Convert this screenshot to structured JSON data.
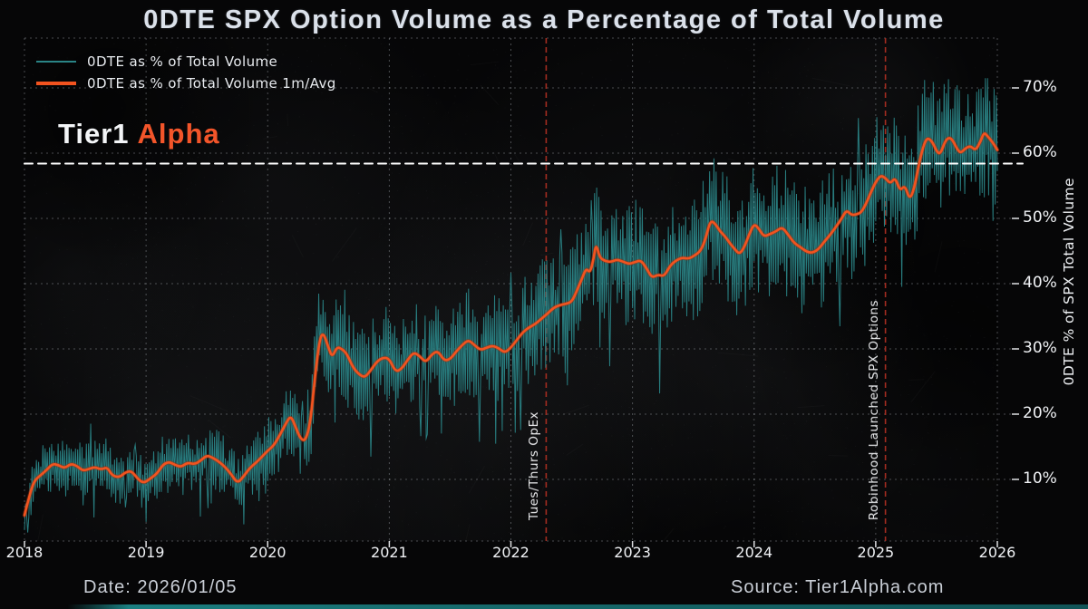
{
  "brand": {
    "part1": "Tier1",
    "part2": "Alpha"
  },
  "footer": {
    "date": "Date: 2026/01/05",
    "source": "Source: Tier1Alpha.com"
  },
  "colors": {
    "background": "#060607",
    "raw_series": "#2a8486",
    "avg_series": "#f2531f",
    "grid": "#aeb3b8",
    "reference_line": "#ffffff",
    "event_line": "#a32c20",
    "title_text": "#dbe1ea",
    "brand_accent": "#f3552a"
  },
  "chart_data": {
    "type": "line",
    "title": "0DTE SPX Option Volume as a Percentage of Total Volume",
    "xlabel": "",
    "ylabel": "0DTE % of SPX Total Volume",
    "xlim": [
      2018,
      2026
    ],
    "ylim": [
      0.5,
      77.6
    ],
    "grid": true,
    "legend_position": "upper-left",
    "x_tick_values": [
      2018,
      2019,
      2020,
      2021,
      2022,
      2023,
      2024,
      2025,
      2026
    ],
    "x_tick_labels": [
      "2018",
      "2019",
      "2020",
      "2021",
      "2022",
      "2023",
      "2024",
      "2025",
      "2026"
    ],
    "y_tick_values": [
      10,
      20,
      30,
      40,
      50,
      60,
      70
    ],
    "y_tick_labels": [
      "10%",
      "20%",
      "30%",
      "40%",
      "50%",
      "60%",
      "70%"
    ],
    "reference_hline": {
      "value": 58.4,
      "color": "#ffffff",
      "style": "dashed"
    },
    "event_vlines": [
      {
        "x": 2022.29,
        "label": "Tues/Thurs OpEx",
        "color": "#a32c20"
      },
      {
        "x": 2025.08,
        "label": "Robinhood Launched SPX Options",
        "color": "#a32c20"
      }
    ],
    "series": [
      {
        "name": "0DTE as % of Total Volume",
        "color": "#2a8486",
        "line_width": 1,
        "kind": "raw_daily_noisy",
        "synthesis": {
          "seed": 20260105,
          "points_per_year": 112,
          "amp_base": 3.2,
          "amp_slope": 0.17,
          "amp_min": 3.0,
          "amp_max": 9.5,
          "early_regime_end": 2022.3,
          "early_amp_factor": 1.12,
          "down_spike_prob_early": 0.05,
          "down_spike_prob_late": 0.02,
          "up_spike_prob": 0.012,
          "value_min": 1.5,
          "value_max": 71.5
        }
      },
      {
        "name": "0DTE as % of Total Volume 1m/Avg",
        "color": "#f2531f",
        "line_width": 2.6,
        "kind": "smoothed_average",
        "points": [
          [
            2018.0,
            4.5
          ],
          [
            2018.04,
            7.5
          ],
          [
            2018.08,
            9.8
          ],
          [
            2018.13,
            10.6
          ],
          [
            2018.18,
            11.4
          ],
          [
            2018.23,
            12.4
          ],
          [
            2018.28,
            12.2
          ],
          [
            2018.33,
            11.7
          ],
          [
            2018.38,
            12.4
          ],
          [
            2018.43,
            12.1
          ],
          [
            2018.48,
            11.3
          ],
          [
            2018.53,
            11.6
          ],
          [
            2018.58,
            11.9
          ],
          [
            2018.63,
            11.5
          ],
          [
            2018.68,
            11.9
          ],
          [
            2018.72,
            10.6
          ],
          [
            2018.78,
            10.3
          ],
          [
            2018.83,
            11.1
          ],
          [
            2018.88,
            11.3
          ],
          [
            2018.93,
            10.1
          ],
          [
            2018.98,
            9.4
          ],
          [
            2019.04,
            10.2
          ],
          [
            2019.09,
            10.9
          ],
          [
            2019.14,
            12.3
          ],
          [
            2019.19,
            12.7
          ],
          [
            2019.24,
            12.2
          ],
          [
            2019.29,
            11.9
          ],
          [
            2019.34,
            12.6
          ],
          [
            2019.4,
            12.3
          ],
          [
            2019.45,
            12.9
          ],
          [
            2019.5,
            13.7
          ],
          [
            2019.55,
            13.3
          ],
          [
            2019.6,
            12.7
          ],
          [
            2019.65,
            11.9
          ],
          [
            2019.7,
            10.8
          ],
          [
            2019.75,
            9.4
          ],
          [
            2019.8,
            10.4
          ],
          [
            2019.85,
            11.7
          ],
          [
            2019.9,
            12.5
          ],
          [
            2019.95,
            13.4
          ],
          [
            2020.0,
            14.4
          ],
          [
            2020.05,
            15.2
          ],
          [
            2020.1,
            16.8
          ],
          [
            2020.15,
            18.6
          ],
          [
            2020.19,
            19.8
          ],
          [
            2020.23,
            18.0
          ],
          [
            2020.27,
            16.2
          ],
          [
            2020.31,
            15.9
          ],
          [
            2020.35,
            18.5
          ],
          [
            2020.39,
            26.0
          ],
          [
            2020.43,
            31.8
          ],
          [
            2020.46,
            32.4
          ],
          [
            2020.5,
            30.2
          ],
          [
            2020.53,
            28.7
          ],
          [
            2020.57,
            30.3
          ],
          [
            2020.61,
            30.0
          ],
          [
            2020.65,
            29.3
          ],
          [
            2020.7,
            27.2
          ],
          [
            2020.75,
            26.1
          ],
          [
            2020.8,
            25.6
          ],
          [
            2020.85,
            26.8
          ],
          [
            2020.9,
            28.1
          ],
          [
            2020.95,
            28.7
          ],
          [
            2021.0,
            28.5
          ],
          [
            2021.05,
            26.5
          ],
          [
            2021.1,
            26.9
          ],
          [
            2021.15,
            28.3
          ],
          [
            2021.2,
            29.5
          ],
          [
            2021.25,
            28.9
          ],
          [
            2021.3,
            27.9
          ],
          [
            2021.35,
            29.2
          ],
          [
            2021.4,
            29.7
          ],
          [
            2021.45,
            28.2
          ],
          [
            2021.5,
            28.4
          ],
          [
            2021.55,
            29.6
          ],
          [
            2021.6,
            30.6
          ],
          [
            2021.65,
            31.4
          ],
          [
            2021.7,
            30.6
          ],
          [
            2021.75,
            29.8
          ],
          [
            2021.8,
            30.2
          ],
          [
            2021.85,
            30.5
          ],
          [
            2021.9,
            30.1
          ],
          [
            2021.95,
            29.4
          ],
          [
            2022.0,
            30.2
          ],
          [
            2022.05,
            31.4
          ],
          [
            2022.1,
            32.6
          ],
          [
            2022.15,
            33.3
          ],
          [
            2022.2,
            33.8
          ],
          [
            2022.25,
            34.6
          ],
          [
            2022.3,
            35.4
          ],
          [
            2022.35,
            36.3
          ],
          [
            2022.4,
            36.7
          ],
          [
            2022.45,
            36.9
          ],
          [
            2022.5,
            37.2
          ],
          [
            2022.54,
            38.8
          ],
          [
            2022.58,
            40.6
          ],
          [
            2022.62,
            42.4
          ],
          [
            2022.65,
            41.6
          ],
          [
            2022.68,
            43.8
          ],
          [
            2022.7,
            46.2
          ],
          [
            2022.73,
            44.0
          ],
          [
            2022.77,
            43.5
          ],
          [
            2022.82,
            43.3
          ],
          [
            2022.87,
            43.7
          ],
          [
            2022.92,
            43.4
          ],
          [
            2022.97,
            43.0
          ],
          [
            2023.02,
            43.3
          ],
          [
            2023.07,
            43.6
          ],
          [
            2023.12,
            42.2
          ],
          [
            2023.16,
            40.9
          ],
          [
            2023.21,
            41.4
          ],
          [
            2023.26,
            41.1
          ],
          [
            2023.31,
            42.8
          ],
          [
            2023.36,
            43.6
          ],
          [
            2023.41,
            44.0
          ],
          [
            2023.46,
            43.8
          ],
          [
            2023.51,
            44.3
          ],
          [
            2023.56,
            45.0
          ],
          [
            2023.6,
            46.8
          ],
          [
            2023.64,
            49.7
          ],
          [
            2023.68,
            49.2
          ],
          [
            2023.72,
            48.0
          ],
          [
            2023.76,
            47.3
          ],
          [
            2023.8,
            46.2
          ],
          [
            2023.84,
            45.3
          ],
          [
            2023.88,
            44.5
          ],
          [
            2023.92,
            45.6
          ],
          [
            2023.96,
            47.6
          ],
          [
            2024.0,
            49.2
          ],
          [
            2024.04,
            48.4
          ],
          [
            2024.08,
            47.2
          ],
          [
            2024.13,
            47.6
          ],
          [
            2024.18,
            48.0
          ],
          [
            2024.23,
            48.7
          ],
          [
            2024.28,
            47.5
          ],
          [
            2024.33,
            46.2
          ],
          [
            2024.38,
            45.6
          ],
          [
            2024.43,
            44.9
          ],
          [
            2024.48,
            44.7
          ],
          [
            2024.53,
            45.3
          ],
          [
            2024.58,
            46.5
          ],
          [
            2024.63,
            47.6
          ],
          [
            2024.68,
            48.9
          ],
          [
            2024.72,
            50.0
          ],
          [
            2024.76,
            51.3
          ],
          [
            2024.8,
            50.5
          ],
          [
            2024.84,
            50.6
          ],
          [
            2024.88,
            50.9
          ],
          [
            2024.92,
            52.2
          ],
          [
            2024.96,
            54.0
          ],
          [
            2025.0,
            55.6
          ],
          [
            2025.04,
            56.6
          ],
          [
            2025.08,
            56.2
          ],
          [
            2025.12,
            55.3
          ],
          [
            2025.16,
            56.3
          ],
          [
            2025.2,
            54.2
          ],
          [
            2025.24,
            55.1
          ],
          [
            2025.28,
            52.8
          ],
          [
            2025.32,
            54.8
          ],
          [
            2025.36,
            58.8
          ],
          [
            2025.4,
            61.6
          ],
          [
            2025.43,
            62.4
          ],
          [
            2025.47,
            61.6
          ],
          [
            2025.5,
            60.3
          ],
          [
            2025.53,
            59.8
          ],
          [
            2025.57,
            61.8
          ],
          [
            2025.6,
            62.4
          ],
          [
            2025.63,
            62.1
          ],
          [
            2025.67,
            60.6
          ],
          [
            2025.7,
            60.0
          ],
          [
            2025.74,
            60.8
          ],
          [
            2025.78,
            61.1
          ],
          [
            2025.82,
            60.4
          ],
          [
            2025.86,
            61.7
          ],
          [
            2025.89,
            63.2
          ],
          [
            2025.92,
            62.6
          ],
          [
            2025.96,
            61.7
          ],
          [
            2026.0,
            60.5
          ]
        ]
      }
    ]
  }
}
